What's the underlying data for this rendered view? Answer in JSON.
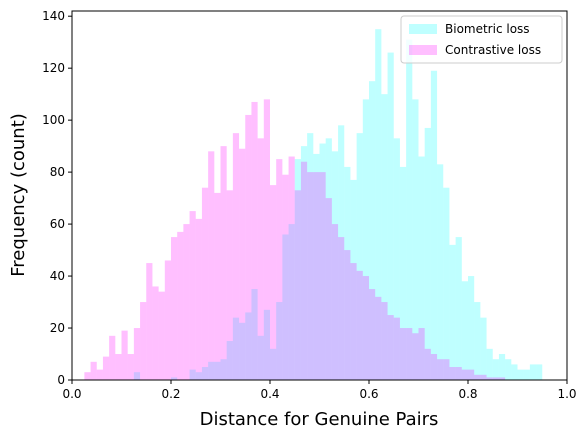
{
  "chart_data": {
    "type": "histogram",
    "xlabel": "Distance for Genuine Pairs",
    "ylabel": "Frequency (count)",
    "xlim": [
      0,
      1
    ],
    "ylim": [
      0,
      142
    ],
    "xticks": [
      {
        "value": 0,
        "label": "0.0"
      },
      0.2,
      0.4,
      0.6,
      0.8,
      {
        "value": 1,
        "label": "1.0"
      }
    ],
    "yticks": [
      0,
      20,
      40,
      60,
      80,
      100,
      120,
      140
    ],
    "legend": "upper right",
    "bins": [
      0,
      0.0125,
      0.025,
      0.0375,
      0.05,
      0.0625,
      0.075,
      0.0875,
      0.1,
      0.1125,
      0.125,
      0.1375,
      0.15,
      0.1625,
      0.175,
      0.1875,
      0.2,
      0.2125,
      0.225,
      0.2375,
      0.25,
      0.2625,
      0.275,
      0.2875,
      0.3,
      0.3125,
      0.325,
      0.3375,
      0.35,
      0.3625,
      0.375,
      0.3875,
      0.4,
      0.4125,
      0.425,
      0.4375,
      0.45,
      0.4625,
      0.475,
      0.4875,
      0.5,
      0.5125,
      0.525,
      0.5375,
      0.55,
      0.5625,
      0.575,
      0.5875,
      0.6,
      0.6125,
      0.625,
      0.6375,
      0.65,
      0.6625,
      0.675,
      0.6875,
      0.7,
      0.7125,
      0.725,
      0.7375,
      0.75,
      0.7625,
      0.775,
      0.7875,
      0.8,
      0.8125,
      0.825,
      0.8375,
      0.85,
      0.8625,
      0.875,
      0.8875,
      0.9,
      0.9125,
      0.925,
      0.9375,
      0.95,
      0.9625,
      0.975,
      0.9875,
      1
    ],
    "series": [
      {
        "name": "Biometric loss",
        "color": "#00ffff",
        "values": [
          0,
          0,
          0,
          0,
          0,
          0,
          0,
          0,
          0,
          0,
          3,
          0,
          0,
          0,
          0,
          0,
          1,
          0,
          0,
          4,
          3,
          5,
          7,
          7,
          8,
          15,
          24,
          22,
          26,
          35,
          17,
          27,
          12,
          30,
          56,
          60,
          85,
          90,
          95,
          87,
          91,
          93,
          88,
          98,
          82,
          77,
          95,
          108,
          115,
          135,
          110,
          126,
          93,
          82,
          131,
          108,
          86,
          97,
          119,
          83,
          74,
          52,
          55,
          38,
          40,
          30,
          24,
          12,
          8,
          10,
          8,
          6,
          4,
          4,
          6,
          6,
          0,
          0,
          0,
          0
        ]
      },
      {
        "name": "Contrastive loss",
        "color": "#ff00ff",
        "values": [
          0,
          0,
          3,
          7,
          4,
          9,
          17,
          10,
          19,
          10,
          20,
          30,
          45,
          36,
          34,
          46,
          55,
          57,
          60,
          65,
          62,
          74,
          88,
          72,
          90,
          73,
          95,
          89,
          102,
          107,
          93,
          108,
          75,
          85,
          79,
          86,
          73,
          84,
          80,
          80,
          80,
          70,
          60,
          55,
          50,
          45,
          42,
          40,
          35,
          32,
          30,
          25,
          24,
          20,
          20,
          18,
          20,
          12,
          10,
          8,
          8,
          5,
          5,
          4,
          4,
          2,
          2,
          1,
          1,
          1,
          0,
          0,
          0,
          0,
          0,
          0,
          0,
          0,
          0,
          0
        ]
      }
    ]
  }
}
